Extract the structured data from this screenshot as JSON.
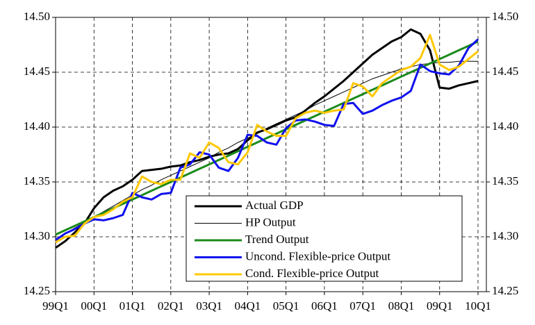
{
  "chart_data": {
    "type": "line",
    "categories": [
      "99Q1",
      null,
      null,
      null,
      "00Q1",
      null,
      null,
      null,
      "01Q1",
      null,
      null,
      null,
      "02Q1",
      null,
      null,
      null,
      "03Q1",
      null,
      null,
      null,
      "04Q1",
      null,
      null,
      null,
      "05Q1",
      null,
      null,
      null,
      "06Q1",
      null,
      null,
      null,
      "07Q1",
      null,
      null,
      null,
      "08Q1",
      null,
      null,
      null,
      "09Q1",
      null,
      null,
      null,
      "10Q1"
    ],
    "series": [
      {
        "name": "Actual GDP",
        "color": "#000000",
        "width": 3,
        "values": [
          14.29,
          14.296,
          14.304,
          14.312,
          14.326,
          14.336,
          14.342,
          14.346,
          14.352,
          14.36,
          14.361,
          14.362,
          14.364,
          14.365,
          14.368,
          14.37,
          14.373,
          14.375,
          14.376,
          14.38,
          14.388,
          14.395,
          14.398,
          14.402,
          14.406,
          14.409,
          14.415,
          14.422,
          14.428,
          14.435,
          14.442,
          14.45,
          14.458,
          14.466,
          14.472,
          14.478,
          14.482,
          14.489,
          14.485,
          14.47,
          14.436,
          14.435,
          14.438,
          14.44,
          14.442
        ]
      },
      {
        "name": "HP Output",
        "color": "#000000",
        "width": 1,
        "values": [
          14.298,
          14.303,
          14.308,
          14.313,
          14.318,
          14.323,
          14.328,
          14.333,
          14.338,
          14.343,
          14.347,
          14.352,
          14.356,
          14.36,
          14.364,
          14.368,
          14.372,
          14.377,
          14.381,
          14.386,
          14.39,
          14.394,
          14.399,
          14.403,
          14.407,
          14.411,
          14.415,
          14.42,
          14.424,
          14.428,
          14.432,
          14.436,
          14.44,
          14.444,
          14.447,
          14.45,
          14.453,
          14.455,
          14.457,
          14.458,
          14.459,
          14.459,
          14.46,
          14.46,
          14.46
        ]
      },
      {
        "name": "Trend Output",
        "color": "#1a8a1a",
        "width": 3,
        "values": [
          14.302,
          14.306,
          14.31,
          14.314,
          14.318,
          14.322,
          14.326,
          14.33,
          14.334,
          14.338,
          14.342,
          14.346,
          14.35,
          14.354,
          14.358,
          14.362,
          14.366,
          14.37,
          14.374,
          14.378,
          14.382,
          14.386,
          14.39,
          14.394,
          14.398,
          14.402,
          14.406,
          14.41,
          14.414,
          14.418,
          14.422,
          14.426,
          14.43,
          14.434,
          14.438,
          14.442,
          14.446,
          14.45,
          14.454,
          14.458,
          14.462,
          14.466,
          14.47,
          14.474,
          14.478
        ]
      },
      {
        "name": "Uncond. Flexible-price Output",
        "color": "#1010ee",
        "width": 3,
        "values": [
          14.297,
          14.303,
          14.307,
          14.312,
          14.316,
          14.315,
          14.317,
          14.32,
          14.34,
          14.336,
          14.334,
          14.339,
          14.34,
          14.363,
          14.366,
          14.377,
          14.375,
          14.363,
          14.36,
          14.372,
          14.393,
          14.392,
          14.386,
          14.384,
          14.399,
          14.406,
          14.407,
          14.405,
          14.402,
          14.401,
          14.421,
          14.422,
          14.412,
          14.415,
          14.42,
          14.424,
          14.427,
          14.433,
          14.457,
          14.451,
          14.449,
          14.448,
          14.456,
          14.472,
          14.48
        ]
      },
      {
        "name": "Cond. Flexible-price Output",
        "color": "#ffc800",
        "width": 3,
        "values": [
          14.295,
          14.3,
          14.301,
          14.312,
          14.318,
          14.32,
          14.325,
          14.332,
          14.336,
          14.355,
          14.35,
          14.348,
          14.352,
          14.352,
          14.376,
          14.372,
          14.386,
          14.381,
          14.368,
          14.366,
          14.377,
          14.402,
          14.396,
          14.392,
          14.392,
          14.408,
          14.413,
          14.415,
          14.413,
          14.415,
          14.416,
          14.44,
          14.437,
          14.428,
          14.44,
          14.446,
          14.452,
          14.455,
          14.463,
          14.484,
          14.457,
          14.452,
          14.455,
          14.462,
          14.469
        ]
      }
    ],
    "ylim": [
      14.25,
      14.5
    ],
    "yticks": [
      {
        "value": 14.25,
        "label": "14.25"
      },
      {
        "value": 14.3,
        "label": "14.30"
      },
      {
        "value": 14.35,
        "label": "14.35"
      },
      {
        "value": 14.4,
        "label": "14.40"
      },
      {
        "value": 14.45,
        "label": "14.45"
      },
      {
        "value": 14.5,
        "label": "14.50"
      }
    ],
    "grid": true
  }
}
